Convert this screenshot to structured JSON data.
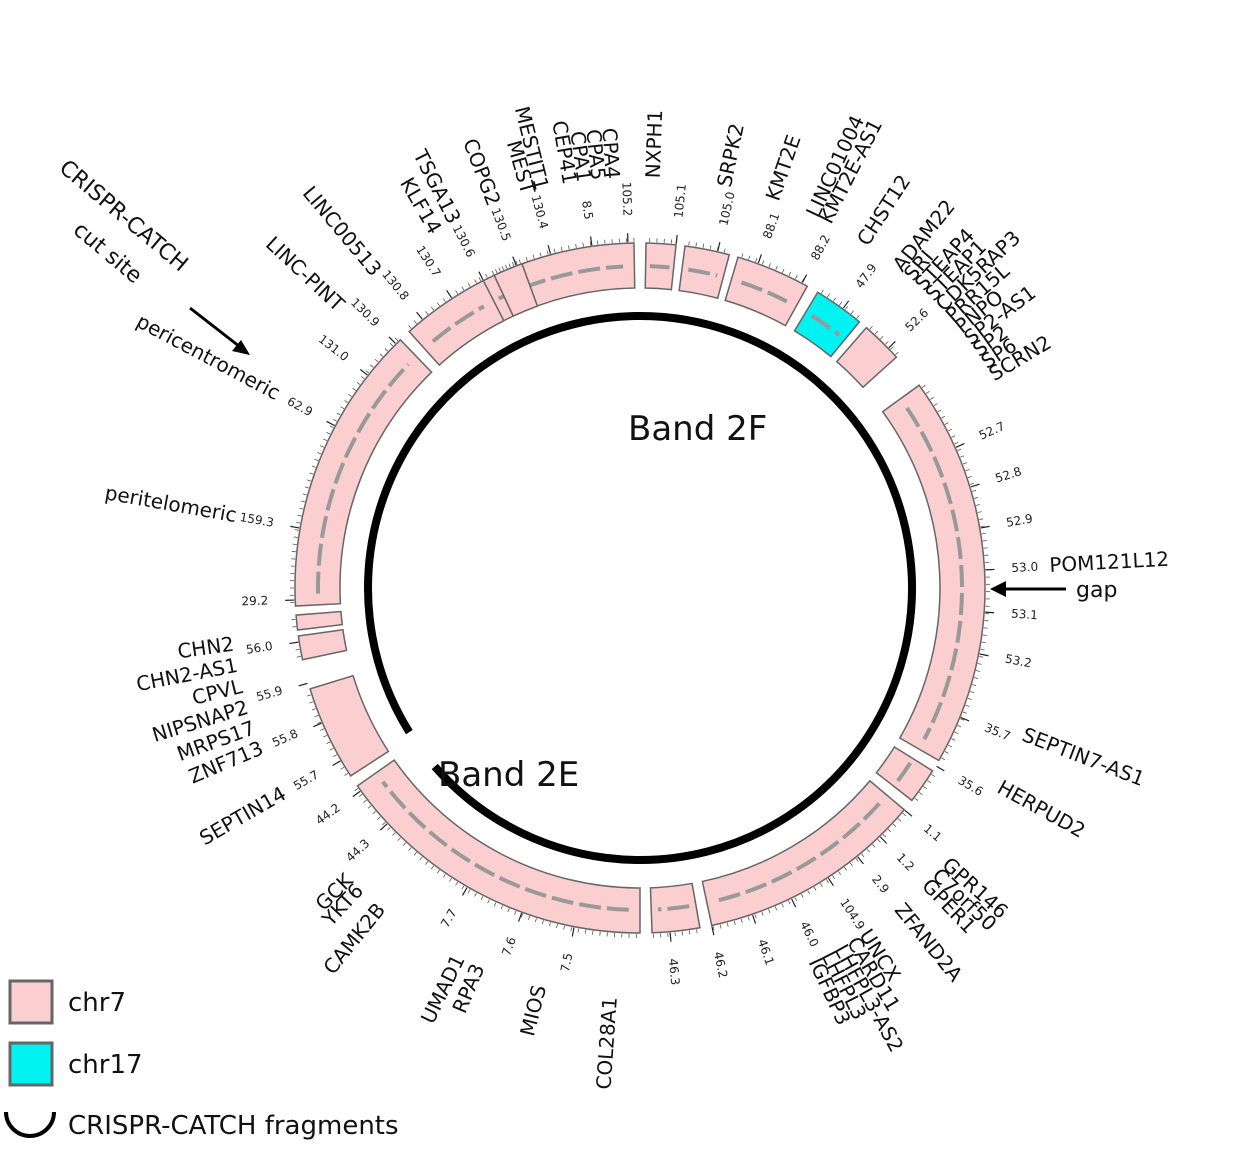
{
  "colors": {
    "chr7": "#fbcfcf",
    "chr17": "#00f2f2",
    "segment_border": "#666666",
    "ring": "#000000",
    "gene_track": "#999999"
  },
  "bands": [
    {
      "label": "Band 2F"
    },
    {
      "label": "Band 2E"
    }
  ],
  "callouts": {
    "cut_site_line1": "CRISPR-CATCH",
    "cut_site_line2": "cut site",
    "gap": "gap"
  },
  "legend": [
    {
      "label": "chr7",
      "swatch": "chr7"
    },
    {
      "label": "chr17",
      "swatch": "chr17"
    },
    {
      "label": "CRISPR-CATCH fragments",
      "swatch": "arc"
    }
  ],
  "segments": [
    {
      "chrom": "chr7",
      "start_deg": 242,
      "end_deg": 269,
      "has_track": true
    },
    {
      "chrom": "chr7",
      "start_deg": 271,
      "end_deg": 276,
      "has_track": true
    },
    {
      "chrom": "chr7",
      "start_deg": 277.5,
      "end_deg": 285,
      "has_track": true
    },
    {
      "chrom": "chr7",
      "start_deg": 286.5,
      "end_deg": 299,
      "has_track": true
    },
    {
      "chrom": "chr17",
      "start_deg": 301,
      "end_deg": 309.5,
      "has_track": true
    },
    {
      "chrom": "chr7",
      "start_deg": 311,
      "end_deg": 318,
      "has_track": false
    },
    {
      "chrom": "chr7",
      "start_deg": 324,
      "end_deg": 390,
      "has_track": true
    },
    {
      "chrom": "chr7",
      "start_deg": 392,
      "end_deg": 398,
      "has_track": true
    },
    {
      "chrom": "chr7",
      "start_deg": 400,
      "end_deg": 438,
      "has_track": true
    },
    {
      "chrom": "chr7",
      "start_deg": 440,
      "end_deg": 448,
      "has_track": true
    },
    {
      "chrom": "chr7",
      "start_deg": 450,
      "end_deg": 505,
      "has_track": true
    },
    {
      "chrom": "chr7",
      "start_deg": 507,
      "end_deg": 523,
      "has_track": false
    },
    {
      "chrom": "chr7",
      "start_deg": 528,
      "end_deg": 532,
      "has_track": false
    },
    {
      "chrom": "chr7",
      "start_deg": 533,
      "end_deg": 535.5,
      "has_track": false
    },
    {
      "chrom": "chr7",
      "start_deg": 537,
      "end_deg": 586,
      "has_track": true
    },
    {
      "chrom": "chr7",
      "start_deg": 588,
      "end_deg": 603,
      "has_track": true
    },
    {
      "chrom": "chr7",
      "start_deg": 605,
      "end_deg": 610,
      "has_track": false
    }
  ],
  "fragments": [
    {
      "start_deg": 248,
      "end_deg": 499
    },
    {
      "start_deg": 508,
      "end_deg": 617
    }
  ],
  "ticks": [
    {
      "deg": 336,
      "label": "52.7"
    },
    {
      "deg": 343,
      "label": "52.8"
    },
    {
      "deg": 350,
      "label": "52.9"
    },
    {
      "deg": 357,
      "label": "53.0"
    },
    {
      "deg": 364,
      "label": "53.1"
    },
    {
      "deg": 371,
      "label": "53.2"
    },
    {
      "deg": 382,
      "label": "35.7"
    },
    {
      "deg": 391,
      "label": "35.6"
    },
    {
      "deg": 400,
      "label": "1.1"
    },
    {
      "deg": 406,
      "label": "1.2"
    },
    {
      "deg": 411,
      "label": "2.9"
    },
    {
      "deg": 417,
      "label": "104.9"
    },
    {
      "deg": 424,
      "label": "46.0"
    },
    {
      "deg": 431,
      "label": "46.1"
    },
    {
      "deg": 438,
      "label": "46.2"
    },
    {
      "deg": 445,
      "label": "46.3"
    },
    {
      "deg": 461,
      "label": "7.5"
    },
    {
      "deg": 470,
      "label": "7.6"
    },
    {
      "deg": 480,
      "label": "7.7"
    },
    {
      "deg": 497,
      "label": "44.3"
    },
    {
      "deg": 504,
      "label": "44.2"
    },
    {
      "deg": 510,
      "label": "55.7"
    },
    {
      "deg": 517,
      "label": "55.8"
    },
    {
      "deg": 524,
      "label": "55.9"
    },
    {
      "deg": 531,
      "label": "56.0"
    },
    {
      "deg": 538,
      "label": "29.2"
    },
    {
      "deg": 550,
      "label": "159.3"
    },
    {
      "deg": 568,
      "label": "62.9"
    },
    {
      "deg": 578,
      "label": "131.0"
    },
    {
      "deg": 585,
      "label": "130.9"
    },
    {
      "deg": 591,
      "label": "130.8"
    },
    {
      "deg": 597,
      "label": "130.7"
    },
    {
      "deg": 603,
      "label": "130.6"
    },
    {
      "deg": 609,
      "label": "130.5"
    },
    {
      "deg": 615,
      "label": "130.4"
    },
    {
      "deg": 622,
      "label": "8.5"
    },
    {
      "deg": 628,
      "label": "105.2"
    },
    {
      "deg": 636,
      "label": "105.1"
    },
    {
      "deg": 643,
      "label": "105.0"
    },
    {
      "deg": 650,
      "label": "88.1"
    },
    {
      "deg": 658,
      "label": "88.2"
    },
    {
      "deg": 666,
      "label": "47.9"
    },
    {
      "deg": 676,
      "label": "52.6"
    }
  ],
  "genes": [
    {
      "deg": 357,
      "label": "POM121L12"
    },
    {
      "deg": 381,
      "label": "SEPTIN7-AS1"
    },
    {
      "deg": 389,
      "label": "HERPUD2"
    },
    {
      "deg": 402,
      "label": "GPR146"
    },
    {
      "deg": 404,
      "label": "C7orf50"
    },
    {
      "deg": 406,
      "label": "GPER1"
    },
    {
      "deg": 411,
      "label": "ZFAND2A"
    },
    {
      "deg": 417,
      "label": "UNCX"
    },
    {
      "deg": 419,
      "label": "CARD11"
    },
    {
      "deg": 421,
      "label": "LHFPL3-AS2"
    },
    {
      "deg": 423,
      "label": "LHFPL3"
    },
    {
      "deg": 425,
      "label": "IGFBP3"
    },
    {
      "deg": 454,
      "label": "COL28A1"
    },
    {
      "deg": 464,
      "label": "MIOS"
    },
    {
      "deg": 473,
      "label": "RPA3"
    },
    {
      "deg": 476,
      "label": "UMAD1"
    },
    {
      "deg": 489,
      "label": "CAMK2B"
    },
    {
      "deg": 493,
      "label": "YKT6"
    },
    {
      "deg": 495,
      "label": "GCK"
    },
    {
      "deg": 510,
      "label": "SEPTIN14"
    },
    {
      "deg": 517,
      "label": "ZNF713"
    },
    {
      "deg": 520,
      "label": "MRPS17"
    },
    {
      "deg": 523,
      "label": "NIPSNAP2"
    },
    {
      "deg": 526,
      "label": "CPVL"
    },
    {
      "deg": 529,
      "label": "CHN2-AS1"
    },
    {
      "deg": 532,
      "label": "CHN2"
    },
    {
      "deg": 550,
      "label": "peritelomeric"
    },
    {
      "deg": 568,
      "label": "pericentromeric"
    },
    {
      "deg": 583,
      "label": "LINC-PINT"
    },
    {
      "deg": 590,
      "label": "LINC00513"
    },
    {
      "deg": 600,
      "label": "KLF14"
    },
    {
      "deg": 603,
      "label": "TSGA13"
    },
    {
      "deg": 609,
      "label": "COPG2"
    },
    {
      "deg": 614,
      "label": "MEST"
    },
    {
      "deg": 616,
      "label": "MESTIT1"
    },
    {
      "deg": 620,
      "label": "CEP41"
    },
    {
      "deg": 622,
      "label": "CPA1"
    },
    {
      "deg": 624,
      "label": "CPA5"
    },
    {
      "deg": 626,
      "label": "CPA4"
    },
    {
      "deg": 632,
      "label": "NXPH1"
    },
    {
      "deg": 642,
      "label": "SRPK2"
    },
    {
      "deg": 649,
      "label": "KMT2E"
    },
    {
      "deg": 655,
      "label": "LINC01004"
    },
    {
      "deg": 657,
      "label": "KMT2E-AS1"
    },
    {
      "deg": 663,
      "label": "CHST12"
    },
    {
      "deg": 669,
      "label": "ADAM22"
    },
    {
      "deg": 671,
      "label": "SRI"
    },
    {
      "deg": 673,
      "label": "STEAP4"
    },
    {
      "deg": 675,
      "label": "STEAP1"
    },
    {
      "deg": 677,
      "label": "CDK5RAP3"
    },
    {
      "deg": 679,
      "label": "PRR15L"
    },
    {
      "deg": 681,
      "label": "PNPO"
    },
    {
      "deg": 683,
      "label": "SP2-AS1"
    },
    {
      "deg": 685,
      "label": "SP2"
    },
    {
      "deg": 687,
      "label": "SP6"
    },
    {
      "deg": 689,
      "label": "SCRN2"
    }
  ]
}
